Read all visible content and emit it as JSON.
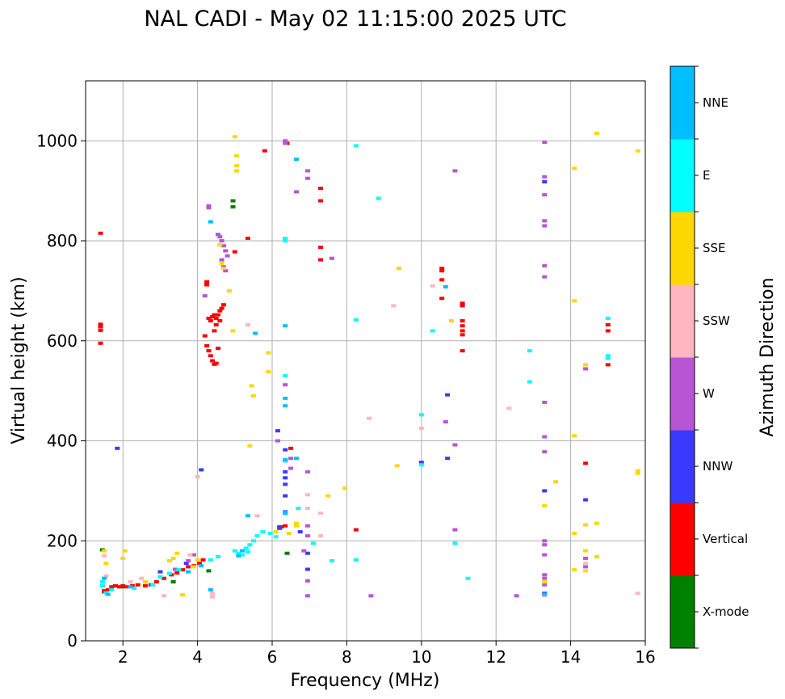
{
  "chart_data": {
    "type": "scatter",
    "title": "NAL CADI - May 02 11:15:00 2025 UTC",
    "xlabel": "Frequency (MHz)",
    "ylabel": "Virtual height (km)",
    "xlim": [
      1,
      16
    ],
    "ylim": [
      0,
      1120
    ],
    "xticks": [
      2,
      4,
      6,
      8,
      10,
      12,
      14,
      16
    ],
    "yticks": [
      0,
      200,
      400,
      600,
      800,
      1000
    ],
    "grid": true,
    "colorbar": {
      "label": "Azimuth Direction",
      "categories": [
        {
          "name": "X-mode",
          "color": "#008000"
        },
        {
          "name": "Vertical",
          "color": "#ff0000"
        },
        {
          "name": "NNW",
          "color": "#3a3aff"
        },
        {
          "name": "W",
          "color": "#b855d4"
        },
        {
          "name": "SSW",
          "color": "#ffb6c1"
        },
        {
          "name": "SSE",
          "color": "#ffd700"
        },
        {
          "name": "E",
          "color": "#00ffff"
        },
        {
          "name": "NNE",
          "color": "#00bfff"
        }
      ]
    },
    "series": [
      {
        "name": "X-mode",
        "points": [
          [
            1.45,
            182
          ],
          [
            1.5,
            100
          ],
          [
            2.0,
            108
          ],
          [
            3.35,
            118
          ],
          [
            4.3,
            140
          ],
          [
            4.95,
            880
          ],
          [
            4.95,
            868
          ],
          [
            6.4,
            175
          ]
        ]
      },
      {
        "name": "Vertical",
        "points": [
          [
            1.4,
            815
          ],
          [
            1.4,
            633
          ],
          [
            1.4,
            628
          ],
          [
            1.4,
            621
          ],
          [
            1.4,
            595
          ],
          [
            1.45,
            110
          ],
          [
            1.5,
            98
          ],
          [
            1.6,
            102
          ],
          [
            1.7,
            108
          ],
          [
            1.8,
            110
          ],
          [
            1.9,
            108
          ],
          [
            2.0,
            110
          ],
          [
            2.1,
            108
          ],
          [
            2.25,
            110
          ],
          [
            2.4,
            112
          ],
          [
            2.6,
            110
          ],
          [
            2.75,
            112
          ],
          [
            2.9,
            118
          ],
          [
            3.1,
            125
          ],
          [
            3.3,
            132
          ],
          [
            3.45,
            136
          ],
          [
            3.6,
            142
          ],
          [
            3.75,
            148
          ],
          [
            3.9,
            150
          ],
          [
            4.05,
            155
          ],
          [
            4.15,
            162
          ],
          [
            4.25,
            718
          ],
          [
            4.25,
            712
          ],
          [
            4.3,
            645
          ],
          [
            4.35,
            640
          ],
          [
            4.4,
            648
          ],
          [
            4.45,
            652
          ],
          [
            4.5,
            645
          ],
          [
            4.55,
            652
          ],
          [
            4.6,
            660
          ],
          [
            4.65,
            665
          ],
          [
            4.7,
            672
          ],
          [
            4.2,
            610
          ],
          [
            4.25,
            590
          ],
          [
            4.3,
            580
          ],
          [
            4.35,
            570
          ],
          [
            4.4,
            560
          ],
          [
            4.45,
            553
          ],
          [
            4.5,
            555
          ],
          [
            4.55,
            585
          ],
          [
            4.45,
            620
          ],
          [
            4.5,
            632
          ],
          [
            4.6,
            640
          ],
          [
            5.0,
            778
          ],
          [
            5.35,
            805
          ],
          [
            5.8,
            980
          ],
          [
            6.25,
            228
          ],
          [
            6.35,
            230
          ],
          [
            6.5,
            385
          ],
          [
            6.4,
            995
          ],
          [
            7.3,
            905
          ],
          [
            7.3,
            880
          ],
          [
            7.3,
            787
          ],
          [
            7.3,
            762
          ],
          [
            8.25,
            222
          ],
          [
            10.55,
            745
          ],
          [
            10.55,
            740
          ],
          [
            10.55,
            722
          ],
          [
            10.55,
            685
          ],
          [
            11.1,
            675
          ],
          [
            11.1,
            670
          ],
          [
            11.1,
            640
          ],
          [
            11.1,
            630
          ],
          [
            11.1,
            620
          ],
          [
            11.1,
            612
          ],
          [
            11.1,
            580
          ],
          [
            14.4,
            355
          ],
          [
            15.0,
            632
          ],
          [
            15.0,
            620
          ],
          [
            15.0,
            552
          ]
        ]
      },
      {
        "name": "NNW",
        "points": [
          [
            1.85,
            385
          ],
          [
            3.0,
            138
          ],
          [
            3.7,
            155
          ],
          [
            4.1,
            342
          ],
          [
            6.2,
            228
          ],
          [
            6.2,
            225
          ],
          [
            6.15,
            420
          ],
          [
            6.35,
            382
          ],
          [
            6.35,
            360
          ],
          [
            6.35,
            338
          ],
          [
            6.35,
            326
          ],
          [
            6.35,
            313
          ],
          [
            6.35,
            290
          ],
          [
            6.35,
            258
          ],
          [
            6.75,
            218
          ],
          [
            6.95,
            175
          ],
          [
            6.95,
            143
          ],
          [
            10.0,
            357
          ],
          [
            10.7,
            492
          ],
          [
            10.7,
            365
          ],
          [
            13.3,
            918
          ],
          [
            13.3,
            300
          ],
          [
            13.3,
            95
          ],
          [
            13.3,
            92
          ],
          [
            14.4,
            282
          ]
        ]
      },
      {
        "name": "W",
        "points": [
          [
            4.3,
            870
          ],
          [
            4.3,
            866
          ],
          [
            4.55,
            813
          ],
          [
            4.6,
            808
          ],
          [
            4.65,
            800
          ],
          [
            4.7,
            790
          ],
          [
            4.75,
            780
          ],
          [
            4.8,
            770
          ],
          [
            4.65,
            762
          ],
          [
            4.7,
            748
          ],
          [
            4.75,
            740
          ],
          [
            4.2,
            690
          ],
          [
            3.4,
            143
          ],
          [
            3.75,
            160
          ],
          [
            3.9,
            172
          ],
          [
            6.35,
            1000
          ],
          [
            6.35,
            995
          ],
          [
            6.65,
            898
          ],
          [
            6.95,
            940
          ],
          [
            6.95,
            925
          ],
          [
            6.35,
            512
          ],
          [
            6.15,
            400
          ],
          [
            6.95,
            338
          ],
          [
            6.95,
            230
          ],
          [
            6.95,
            210
          ],
          [
            6.85,
            180
          ],
          [
            6.95,
            120
          ],
          [
            6.95,
            90
          ],
          [
            7.6,
            765
          ],
          [
            8.65,
            90
          ],
          [
            10.65,
            438
          ],
          [
            10.9,
            940
          ],
          [
            10.9,
            392
          ],
          [
            10.9,
            222
          ],
          [
            12.55,
            90
          ],
          [
            13.3,
            997
          ],
          [
            13.3,
            928
          ],
          [
            13.3,
            892
          ],
          [
            13.3,
            840
          ],
          [
            13.3,
            830
          ],
          [
            13.3,
            750
          ],
          [
            13.3,
            728
          ],
          [
            13.3,
            477
          ],
          [
            13.3,
            408
          ],
          [
            13.3,
            378
          ],
          [
            13.3,
            200
          ],
          [
            13.3,
            192
          ],
          [
            13.3,
            172
          ],
          [
            13.3,
            132
          ],
          [
            13.3,
            125
          ],
          [
            13.3,
            112
          ],
          [
            14.4,
            544
          ],
          [
            14.4,
            165
          ],
          [
            14.4,
            148
          ],
          [
            6.5,
            365
          ],
          [
            6.5,
            345
          ]
        ]
      },
      {
        "name": "SSW",
        "points": [
          [
            1.5,
            170
          ],
          [
            1.55,
            130
          ],
          [
            2.2,
            118
          ],
          [
            2.5,
            125
          ],
          [
            3.1,
            90
          ],
          [
            3.8,
            172
          ],
          [
            4.0,
            328
          ],
          [
            4.4,
            95
          ],
          [
            4.4,
            88
          ],
          [
            5.35,
            632
          ],
          [
            5.6,
            250
          ],
          [
            6.95,
            292
          ],
          [
            6.95,
            265
          ],
          [
            7.3,
            255
          ],
          [
            7.3,
            210
          ],
          [
            8.6,
            445
          ],
          [
            9.25,
            670
          ],
          [
            10.0,
            425
          ],
          [
            10.3,
            710
          ],
          [
            10.9,
            198
          ],
          [
            12.35,
            465
          ],
          [
            13.3,
            90
          ],
          [
            14.4,
            155
          ],
          [
            15.8,
            95
          ]
        ]
      },
      {
        "name": "SSE",
        "points": [
          [
            1.5,
            180
          ],
          [
            1.55,
            155
          ],
          [
            2.05,
            180
          ],
          [
            2.0,
            165
          ],
          [
            2.6,
            118
          ],
          [
            3.25,
            160
          ],
          [
            3.35,
            165
          ],
          [
            3.45,
            175
          ],
          [
            3.6,
            92
          ],
          [
            3.9,
            148
          ],
          [
            4.0,
            162
          ],
          [
            4.6,
            792
          ],
          [
            4.65,
            755
          ],
          [
            4.7,
            745
          ],
          [
            4.85,
            700
          ],
          [
            4.95,
            620
          ],
          [
            5.0,
            1008
          ],
          [
            5.05,
            970
          ],
          [
            5.05,
            950
          ],
          [
            5.05,
            940
          ],
          [
            5.4,
            390
          ],
          [
            5.5,
            490
          ],
          [
            5.45,
            510
          ],
          [
            5.9,
            576
          ],
          [
            5.9,
            538
          ],
          [
            6.1,
            218
          ],
          [
            6.45,
            215
          ],
          [
            6.65,
            235
          ],
          [
            6.65,
            230
          ],
          [
            7.5,
            290
          ],
          [
            7.95,
            305
          ],
          [
            9.4,
            745
          ],
          [
            9.35,
            350
          ],
          [
            10.8,
            640
          ],
          [
            13.3,
            270
          ],
          [
            13.3,
            118
          ],
          [
            13.6,
            318
          ],
          [
            14.1,
            945
          ],
          [
            14.1,
            680
          ],
          [
            14.1,
            410
          ],
          [
            14.1,
            215
          ],
          [
            14.1,
            142
          ],
          [
            14.4,
            552
          ],
          [
            14.4,
            232
          ],
          [
            14.4,
            180
          ],
          [
            14.4,
            140
          ],
          [
            14.7,
            1015
          ],
          [
            14.7,
            235
          ],
          [
            14.7,
            168
          ],
          [
            15.8,
            980
          ],
          [
            15.8,
            340
          ],
          [
            15.8,
            335
          ]
        ]
      },
      {
        "name": "E",
        "points": [
          [
            1.45,
            118
          ],
          [
            1.45,
            110
          ],
          [
            1.55,
            96
          ],
          [
            1.7,
            102
          ],
          [
            2.3,
            105
          ],
          [
            2.8,
            112
          ],
          [
            3.0,
            128
          ],
          [
            3.25,
            135
          ],
          [
            3.5,
            142
          ],
          [
            4.35,
            162
          ],
          [
            4.55,
            168
          ],
          [
            5.0,
            180
          ],
          [
            5.1,
            175
          ],
          [
            5.2,
            172
          ],
          [
            5.3,
            185
          ],
          [
            5.35,
            178
          ],
          [
            5.4,
            192
          ],
          [
            5.5,
            200
          ],
          [
            5.6,
            210
          ],
          [
            5.75,
            218
          ],
          [
            5.95,
            215
          ],
          [
            6.1,
            208
          ],
          [
            6.35,
            530
          ],
          [
            6.35,
            360
          ],
          [
            6.35,
            256
          ],
          [
            6.35,
            805
          ],
          [
            6.35,
            800
          ],
          [
            6.7,
            265
          ],
          [
            7.1,
            195
          ],
          [
            7.6,
            160
          ],
          [
            8.25,
            990
          ],
          [
            8.25,
            642
          ],
          [
            8.25,
            162
          ],
          [
            8.85,
            885
          ],
          [
            10.0,
            352
          ],
          [
            10.0,
            452
          ],
          [
            10.3,
            620
          ],
          [
            10.9,
            195
          ],
          [
            11.25,
            125
          ],
          [
            12.9,
            580
          ],
          [
            12.9,
            518
          ],
          [
            15.0,
            570
          ],
          [
            15.0,
            565
          ],
          [
            15.0,
            645
          ]
        ]
      },
      {
        "name": "NNE",
        "points": [
          [
            1.5,
            125
          ],
          [
            1.6,
            93
          ],
          [
            2.2,
            108
          ],
          [
            3.75,
            138
          ],
          [
            4.1,
            150
          ],
          [
            4.35,
            102
          ],
          [
            4.35,
            838
          ],
          [
            5.1,
            170
          ],
          [
            5.2,
            180
          ],
          [
            5.35,
            250
          ],
          [
            5.55,
            615
          ],
          [
            6.35,
            630
          ],
          [
            6.35,
            485
          ],
          [
            6.35,
            470
          ],
          [
            6.35,
            362
          ],
          [
            6.35,
            255
          ],
          [
            6.65,
            365
          ],
          [
            6.65,
            963
          ],
          [
            10.65,
            708
          ],
          [
            13.3,
            93
          ]
        ]
      }
    ]
  }
}
